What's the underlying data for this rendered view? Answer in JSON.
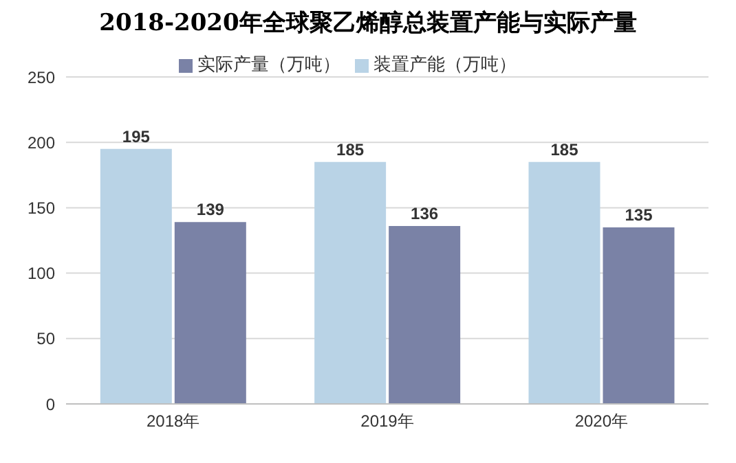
{
  "chart_data": {
    "type": "bar",
    "title": "2018-2020年全球聚乙烯醇总装置产能与实际产量",
    "categories": [
      "2018年",
      "2019年",
      "2020年"
    ],
    "series": [
      {
        "name": "装置产能（万吨）",
        "color": "#b9d3e6",
        "values": [
          195,
          185,
          185
        ]
      },
      {
        "name": "实际产量（万吨）",
        "color": "#7a82a6",
        "values": [
          139,
          136,
          135
        ]
      }
    ],
    "ylim": [
      0,
      250
    ],
    "yticks": [
      0,
      50,
      100,
      150,
      200,
      250
    ],
    "grid": "y",
    "legend": "top",
    "data_labels": true
  }
}
